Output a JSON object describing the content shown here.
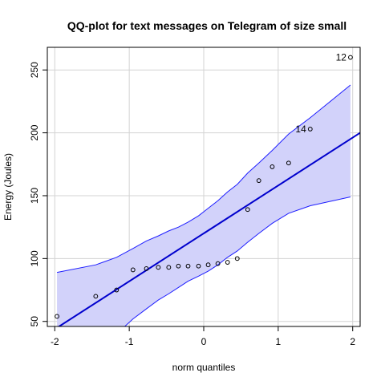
{
  "chart_data": {
    "type": "scatter",
    "title": "QQ-plot for text messages on Telegram of size small",
    "xlabel": "norm quantiles",
    "ylabel": "Energy (Joules)",
    "xlim": [
      -2.1,
      2.1
    ],
    "ylim": [
      46,
      268
    ],
    "x_ticks": [
      "-2",
      "-1",
      "0",
      "1",
      "2"
    ],
    "y_ticks": [
      "50",
      "100",
      "150",
      "200",
      "250"
    ],
    "grid": true,
    "points": [
      {
        "x": -1.97,
        "y": 54
      },
      {
        "x": -1.45,
        "y": 70
      },
      {
        "x": -1.17,
        "y": 75
      },
      {
        "x": -0.95,
        "y": 91
      },
      {
        "x": -0.77,
        "y": 92
      },
      {
        "x": -0.61,
        "y": 93
      },
      {
        "x": -0.47,
        "y": 93
      },
      {
        "x": -0.34,
        "y": 94
      },
      {
        "x": -0.21,
        "y": 94
      },
      {
        "x": -0.07,
        "y": 94
      },
      {
        "x": 0.06,
        "y": 95
      },
      {
        "x": 0.19,
        "y": 96
      },
      {
        "x": 0.32,
        "y": 97
      },
      {
        "x": 0.45,
        "y": 100
      },
      {
        "x": 0.59,
        "y": 139
      },
      {
        "x": 0.74,
        "y": 162
      },
      {
        "x": 0.92,
        "y": 173
      },
      {
        "x": 1.14,
        "y": 176
      },
      {
        "x": 1.43,
        "y": 203,
        "label": "14"
      },
      {
        "x": 1.97,
        "y": 260,
        "label": "12"
      }
    ],
    "reference_line": {
      "x": [
        -2.1,
        2.1
      ],
      "y": [
        40,
        200
      ]
    },
    "envelope": {
      "x": [
        -1.97,
        -1.45,
        -1.17,
        -0.95,
        -0.77,
        -0.61,
        -0.47,
        -0.34,
        -0.21,
        -0.07,
        0.06,
        0.19,
        0.32,
        0.45,
        0.59,
        0.74,
        0.92,
        1.14,
        1.43,
        1.97
      ],
      "upper": [
        89,
        95,
        101,
        108,
        114,
        118,
        122,
        125,
        129,
        134,
        140,
        146,
        153,
        159,
        168,
        176,
        186,
        199,
        212,
        238
      ],
      "lower": [
        14,
        28,
        40,
        52,
        60,
        67,
        72,
        77,
        82,
        86,
        90,
        95,
        101,
        106,
        113,
        120,
        128,
        136,
        142,
        149
      ]
    },
    "colors": {
      "band_fill": "#d2d2fa",
      "band_edge": "#1e1eff",
      "line": "#0000cd",
      "point": "#000000",
      "grid": "#d3d3d3"
    }
  }
}
